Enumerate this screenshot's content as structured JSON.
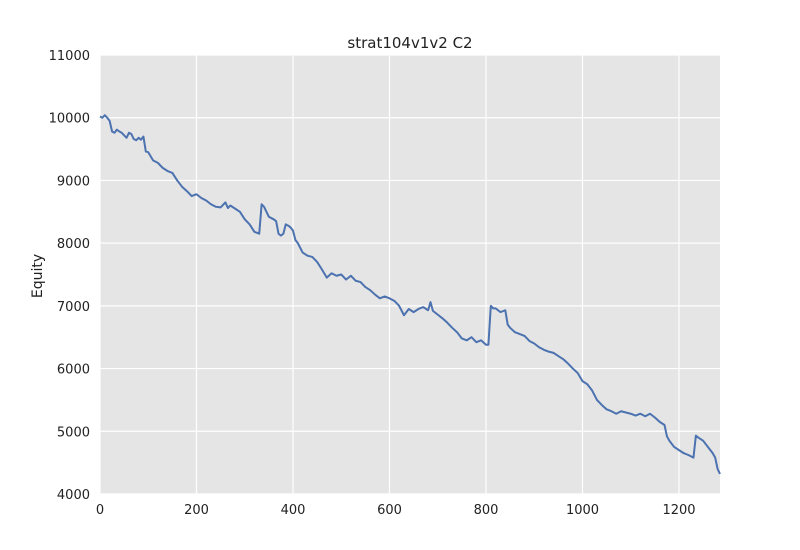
{
  "chart_data": {
    "type": "line",
    "title": "strat104v1v2 C2",
    "xlabel": "",
    "ylabel": "Equity",
    "xlim": [
      0,
      1285
    ],
    "ylim": [
      4000,
      11000
    ],
    "xticks": [
      0,
      200,
      400,
      600,
      800,
      1000,
      1200
    ],
    "yticks": [
      4000,
      5000,
      6000,
      7000,
      8000,
      9000,
      10000,
      11000
    ],
    "grid": true,
    "colors": {
      "line": "#4c72b0",
      "plot_bg": "#e5e5e5",
      "grid": "#ffffff"
    },
    "series": [
      {
        "x": [
          0,
          5,
          10,
          15,
          20,
          25,
          30,
          35,
          40,
          45,
          50,
          55,
          60,
          65,
          70,
          75,
          80,
          85,
          90,
          95,
          100,
          110,
          120,
          130,
          140,
          150,
          160,
          170,
          180,
          190,
          200,
          210,
          220,
          230,
          240,
          250,
          260,
          265,
          270,
          280,
          290,
          300,
          310,
          320,
          330,
          335,
          340,
          345,
          350,
          355,
          360,
          365,
          370,
          375,
          380,
          385,
          390,
          395,
          400,
          405,
          410,
          420,
          430,
          440,
          450,
          460,
          470,
          480,
          490,
          500,
          510,
          520,
          530,
          540,
          550,
          560,
          570,
          580,
          590,
          600,
          610,
          620,
          630,
          640,
          650,
          660,
          670,
          680,
          685,
          690,
          700,
          710,
          720,
          730,
          740,
          750,
          760,
          770,
          780,
          790,
          800,
          805,
          810,
          815,
          820,
          830,
          840,
          845,
          850,
          860,
          870,
          880,
          890,
          900,
          910,
          920,
          930,
          940,
          950,
          960,
          970,
          980,
          990,
          1000,
          1010,
          1020,
          1030,
          1040,
          1050,
          1060,
          1070,
          1080,
          1090,
          1100,
          1110,
          1120,
          1130,
          1140,
          1150,
          1160,
          1170,
          1175,
          1180,
          1190,
          1200,
          1210,
          1220,
          1230,
          1235,
          1240,
          1250,
          1260,
          1270,
          1275,
          1280,
          1285
        ],
        "values": [
          10020,
          10000,
          10040,
          10000,
          9950,
          9780,
          9760,
          9810,
          9780,
          9760,
          9720,
          9680,
          9760,
          9740,
          9660,
          9640,
          9680,
          9650,
          9700,
          9460,
          9450,
          9320,
          9280,
          9200,
          9150,
          9120,
          9000,
          8900,
          8830,
          8750,
          8780,
          8720,
          8680,
          8620,
          8580,
          8570,
          8650,
          8560,
          8600,
          8550,
          8500,
          8380,
          8300,
          8180,
          8150,
          8620,
          8580,
          8500,
          8420,
          8400,
          8380,
          8350,
          8150,
          8120,
          8150,
          8300,
          8280,
          8250,
          8200,
          8050,
          8000,
          7850,
          7800,
          7780,
          7700,
          7580,
          7450,
          7520,
          7480,
          7500,
          7420,
          7480,
          7400,
          7380,
          7300,
          7250,
          7180,
          7120,
          7150,
          7120,
          7080,
          7000,
          6850,
          6950,
          6900,
          6950,
          6980,
          6930,
          7060,
          6920,
          6860,
          6800,
          6730,
          6650,
          6580,
          6480,
          6450,
          6500,
          6420,
          6450,
          6380,
          6380,
          7000,
          6960,
          6960,
          6900,
          6930,
          6700,
          6650,
          6580,
          6550,
          6520,
          6440,
          6400,
          6340,
          6300,
          6270,
          6250,
          6200,
          6150,
          6080,
          6000,
          5930,
          5800,
          5750,
          5650,
          5500,
          5420,
          5350,
          5320,
          5280,
          5320,
          5300,
          5280,
          5250,
          5280,
          5240,
          5280,
          5220,
          5150,
          5100,
          4920,
          4850,
          4750,
          4700,
          4650,
          4620,
          4580,
          4930,
          4900,
          4850,
          4750,
          4650,
          4580,
          4400,
          4320
        ]
      }
    ]
  }
}
